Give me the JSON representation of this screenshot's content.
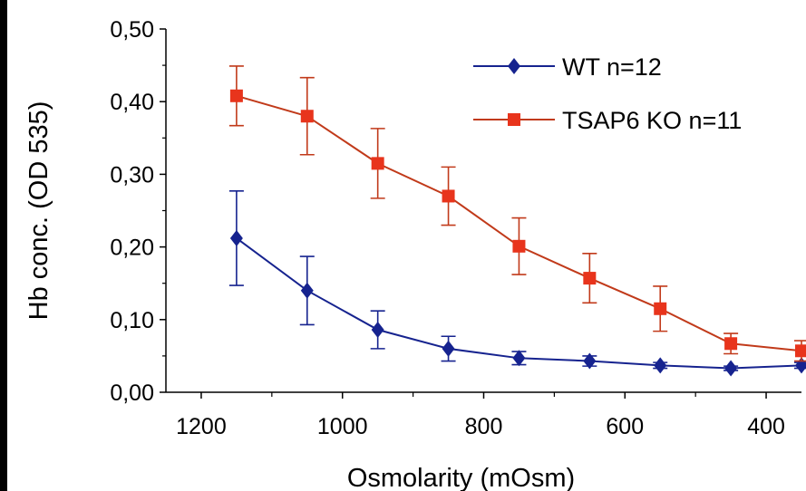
{
  "chart_data": {
    "type": "line",
    "title": "",
    "xlabel": "Osmolarity (mOsm)",
    "ylabel": "Hb conc. (OD 535)",
    "xlim": [
      1250,
      350
    ],
    "x_reversed": true,
    "ylim": [
      0,
      0.5
    ],
    "grid": false,
    "legend_placement": "top-right",
    "x_ticks": [
      1200,
      1000,
      800,
      600,
      400
    ],
    "x_tick_labels": [
      "1200",
      "1000",
      "800",
      "600",
      "400"
    ],
    "y_ticks": [
      0,
      0.1,
      0.2,
      0.3,
      0.4,
      0.5
    ],
    "y_tick_labels": [
      "0,00",
      "0,10",
      "0,20",
      "0,30",
      "0,40",
      "0,50"
    ],
    "x": [
      1150,
      1050,
      950,
      850,
      750,
      650,
      550,
      450,
      350
    ],
    "series": [
      {
        "name": "WT n=12",
        "marker": "diamond",
        "color": "#16238f",
        "values": [
          0.212,
          0.14,
          0.086,
          0.06,
          0.047,
          0.043,
          0.037,
          0.033,
          0.037
        ],
        "errors": [
          0.065,
          0.047,
          0.026,
          0.017,
          0.009,
          0.007,
          0.004,
          0.003,
          0.004
        ]
      },
      {
        "name": "TSAP6 KO n=11",
        "marker": "square",
        "color": "#e8341c",
        "line_color": "#c13a1a",
        "values": [
          0.408,
          0.38,
          0.315,
          0.27,
          0.201,
          0.157,
          0.115,
          0.067,
          0.057
        ],
        "errors": [
          0.041,
          0.053,
          0.048,
          0.04,
          0.039,
          0.034,
          0.031,
          0.014,
          0.014
        ]
      }
    ]
  },
  "style": {
    "page_background": "#000000",
    "plot_background": "#ffffff",
    "axis_color": "#000000",
    "text_color": "#000000"
  }
}
